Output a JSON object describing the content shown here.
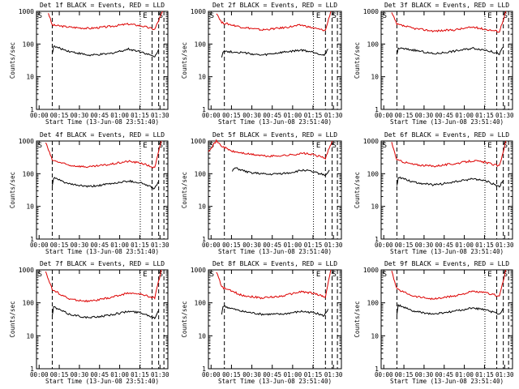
{
  "figure": {
    "background": "#ffffff",
    "events_color": "#000000",
    "lld_color": "#dd0000"
  },
  "chart_data": [
    {
      "type": "line",
      "title": "Det 1f BLACK = Events, RED = LLD",
      "xlabel": "Start Time (13-Jun-08 23:51:40)",
      "ylabel": "Counts/sec",
      "yscale": "log",
      "ylim": [
        1,
        1000
      ],
      "ytick_labels": [
        "1",
        "10",
        "100",
        "1000"
      ],
      "xtick_labels": [
        "00:00",
        "00:15",
        "00:30",
        "00:45",
        "01:00",
        "01:15",
        "01:30"
      ],
      "markers": [
        "S",
        "E",
        "S"
      ],
      "series": [
        {
          "name": "LLD",
          "x": [
            0.09,
            0.12,
            0.25,
            0.4,
            0.55,
            0.7,
            0.8,
            0.9,
            0.96
          ],
          "values": [
            900,
            380,
            330,
            300,
            340,
            410,
            360,
            280,
            1000
          ]
        },
        {
          "name": "Events",
          "x": [
            0.12,
            0.13,
            0.25,
            0.4,
            0.55,
            0.7,
            0.8,
            0.9,
            0.93
          ],
          "values": [
            50,
            85,
            60,
            45,
            50,
            70,
            58,
            40,
            70
          ]
        }
      ]
    },
    {
      "type": "line",
      "title": "Det 2f BLACK = Events, RED = LLD",
      "xlabel": "Start Time (13-Jun-08 23:51:40)",
      "ylabel": "Counts/sec",
      "yscale": "log",
      "ylim": [
        1,
        1000
      ],
      "ytick_labels": [
        "1",
        "10",
        "100",
        "1000"
      ],
      "xtick_labels": [
        "00:00",
        "00:15",
        "00:30",
        "00:45",
        "01:00",
        "01:15",
        "01:30"
      ],
      "markers": [
        "S",
        "E",
        "S"
      ],
      "series": [
        {
          "name": "LLD",
          "x": [
            0.06,
            0.1,
            0.25,
            0.4,
            0.55,
            0.7,
            0.8,
            0.88,
            0.92
          ],
          "values": [
            900,
            450,
            330,
            270,
            310,
            380,
            300,
            260,
            1000
          ]
        },
        {
          "name": "Events",
          "x": [
            0.1,
            0.11,
            0.25,
            0.4,
            0.55,
            0.7,
            0.8,
            0.87,
            0.9
          ],
          "values": [
            40,
            60,
            55,
            45,
            55,
            65,
            55,
            45,
            70
          ]
        }
      ]
    },
    {
      "type": "line",
      "title": "Det 3f BLACK = Events, RED = LLD",
      "xlabel": "Start Time (13-Jun-08 23:51:40)",
      "ylabel": "Counts/sec",
      "yscale": "log",
      "ylim": [
        1,
        1000
      ],
      "ytick_labels": [
        "1",
        "10",
        "100",
        "1000"
      ],
      "xtick_labels": [
        "00:00",
        "00:15",
        "00:30",
        "00:45",
        "01:00",
        "01:15",
        "01:30"
      ],
      "markers": [
        "S",
        "E",
        "S"
      ],
      "series": [
        {
          "name": "LLD",
          "x": [
            0.08,
            0.12,
            0.25,
            0.4,
            0.55,
            0.7,
            0.8,
            0.9,
            0.95
          ],
          "values": [
            900,
            400,
            300,
            250,
            270,
            330,
            280,
            240,
            1000
          ]
        },
        {
          "name": "Events",
          "x": [
            0.12,
            0.13,
            0.25,
            0.4,
            0.55,
            0.7,
            0.8,
            0.9,
            0.93
          ],
          "values": [
            45,
            75,
            65,
            50,
            60,
            75,
            65,
            50,
            80
          ]
        }
      ]
    },
    {
      "type": "line",
      "title": "Det 4f BLACK = Events, RED = LLD",
      "xlabel": "Start Time (13-Jun-08 23:51:40)",
      "ylabel": "Counts/sec",
      "yscale": "log",
      "ylim": [
        1,
        1000
      ],
      "ytick_labels": [
        "1",
        "10",
        "100",
        "1000"
      ],
      "xtick_labels": [
        "00:00",
        "00:15",
        "00:30",
        "00:45",
        "01:00",
        "01:15",
        "01:30"
      ],
      "markers": [
        "S",
        "E",
        "S"
      ],
      "series": [
        {
          "name": "LLD",
          "x": [
            0.07,
            0.12,
            0.25,
            0.4,
            0.55,
            0.7,
            0.8,
            0.9,
            0.95
          ],
          "values": [
            900,
            260,
            180,
            160,
            190,
            240,
            210,
            150,
            1000
          ]
        },
        {
          "name": "Events",
          "x": [
            0.12,
            0.13,
            0.25,
            0.4,
            0.55,
            0.7,
            0.8,
            0.9,
            0.93
          ],
          "values": [
            40,
            75,
            48,
            40,
            48,
            60,
            52,
            35,
            60
          ]
        }
      ]
    },
    {
      "type": "line",
      "title": "Det 5f BLACK = Events, RED = LLD",
      "xlabel": "Start Time (13-Jun-08 23:51:40)",
      "ylabel": "Counts/sec",
      "yscale": "log",
      "ylim": [
        1,
        1000
      ],
      "ytick_labels": [
        "1",
        "10",
        "100",
        "1000"
      ],
      "xtick_labels": [
        "00:00",
        "00:15",
        "00:30",
        "00:45",
        "01:00",
        "01:15",
        "01:30"
      ],
      "markers": [
        "S",
        "E",
        "S"
      ],
      "series": [
        {
          "name": "LLD",
          "x": [
            0.0,
            0.06,
            0.1,
            0.18,
            0.3,
            0.45,
            0.6,
            0.72,
            0.8,
            0.88,
            0.93
          ],
          "values": [
            500,
            1000,
            700,
            480,
            400,
            340,
            370,
            420,
            370,
            300,
            1000
          ]
        },
        {
          "name": "Events",
          "x": [
            0.18,
            0.2,
            0.3,
            0.45,
            0.6,
            0.72,
            0.8,
            0.88,
            0.91
          ],
          "values": [
            120,
            150,
            110,
            95,
            105,
            130,
            110,
            90,
            130
          ]
        }
      ]
    },
    {
      "type": "line",
      "title": "Det 6f BLACK = Events, RED = LLD",
      "xlabel": "Start Time (13-Jun-08 23:51:40)",
      "ylabel": "Counts/sec",
      "yscale": "log",
      "ylim": [
        1,
        1000
      ],
      "ytick_labels": [
        "1",
        "10",
        "100",
        "1000"
      ],
      "xtick_labels": [
        "00:00",
        "00:15",
        "00:30",
        "00:45",
        "01:00",
        "01:15",
        "01:30"
      ],
      "markers": [
        "S",
        "E",
        "S"
      ],
      "series": [
        {
          "name": "LLD",
          "x": [
            0.08,
            0.12,
            0.25,
            0.4,
            0.55,
            0.7,
            0.8,
            0.9,
            0.95
          ],
          "values": [
            900,
            260,
            190,
            170,
            200,
            250,
            220,
            170,
            1000
          ]
        },
        {
          "name": "Events",
          "x": [
            0.12,
            0.13,
            0.25,
            0.4,
            0.55,
            0.7,
            0.8,
            0.9,
            0.93
          ],
          "values": [
            40,
            80,
            55,
            45,
            55,
            70,
            60,
            40,
            65
          ]
        }
      ]
    },
    {
      "type": "line",
      "title": "Det 7f BLACK = Events, RED = LLD",
      "xlabel": "Start Time (13-Jun-08 23:51:40)",
      "ylabel": "Counts/sec",
      "yscale": "log",
      "ylim": [
        1,
        1000
      ],
      "ytick_labels": [
        "1",
        "10",
        "100",
        "1000"
      ],
      "xtick_labels": [
        "00:00",
        "00:15",
        "00:30",
        "00:45",
        "01:00",
        "01:15",
        "01:30"
      ],
      "markers": [
        "S",
        "E",
        "S"
      ],
      "series": [
        {
          "name": "LLD",
          "x": [
            0.07,
            0.12,
            0.25,
            0.4,
            0.55,
            0.7,
            0.8,
            0.9,
            0.95
          ],
          "values": [
            900,
            250,
            130,
            110,
            140,
            200,
            180,
            140,
            1000
          ]
        },
        {
          "name": "Events",
          "x": [
            0.12,
            0.13,
            0.25,
            0.4,
            0.55,
            0.7,
            0.8,
            0.9,
            0.93
          ],
          "values": [
            40,
            75,
            45,
            35,
            42,
            55,
            50,
            35,
            60
          ]
        }
      ]
    },
    {
      "type": "line",
      "title": "Det 8f BLACK = Events, RED = LLD",
      "xlabel": "Start Time (13-Jun-08 23:51:40)",
      "ylabel": "Counts/sec",
      "yscale": "log",
      "ylim": [
        1,
        1000
      ],
      "ytick_labels": [
        "1",
        "10",
        "100",
        "1000"
      ],
      "xtick_labels": [
        "00:00",
        "00:15",
        "00:30",
        "00:45",
        "01:00",
        "01:15",
        "01:30"
      ],
      "markers": [
        "S",
        "E",
        "S"
      ],
      "series": [
        {
          "name": "LLD",
          "x": [
            0.06,
            0.1,
            0.25,
            0.4,
            0.55,
            0.7,
            0.8,
            0.88,
            0.92
          ],
          "values": [
            900,
            300,
            170,
            140,
            160,
            220,
            190,
            150,
            1000
          ]
        },
        {
          "name": "Events",
          "x": [
            0.1,
            0.11,
            0.25,
            0.4,
            0.55,
            0.7,
            0.8,
            0.87,
            0.9
          ],
          "values": [
            45,
            80,
            55,
            45,
            45,
            55,
            50,
            40,
            65
          ]
        }
      ]
    },
    {
      "type": "line",
      "title": "Det 9f BLACK = Events, RED = LLD",
      "xlabel": "Start Time (13-Jun-08 23:51:40)",
      "ylabel": "Counts/sec",
      "yscale": "log",
      "ylim": [
        1,
        1000
      ],
      "ytick_labels": [
        "1",
        "10",
        "100",
        "1000"
      ],
      "xtick_labels": [
        "00:00",
        "00:15",
        "00:30",
        "00:45",
        "01:00",
        "01:15",
        "01:30"
      ],
      "markers": [
        "S",
        "E",
        "S"
      ],
      "series": [
        {
          "name": "LLD",
          "x": [
            0.08,
            0.12,
            0.25,
            0.4,
            0.55,
            0.7,
            0.8,
            0.9,
            0.95
          ],
          "values": [
            900,
            260,
            160,
            130,
            160,
            220,
            200,
            160,
            1000
          ]
        },
        {
          "name": "Events",
          "x": [
            0.12,
            0.13,
            0.25,
            0.4,
            0.55,
            0.7,
            0.8,
            0.9,
            0.93
          ],
          "values": [
            45,
            85,
            55,
            45,
            55,
            70,
            60,
            45,
            70
          ]
        }
      ]
    }
  ]
}
